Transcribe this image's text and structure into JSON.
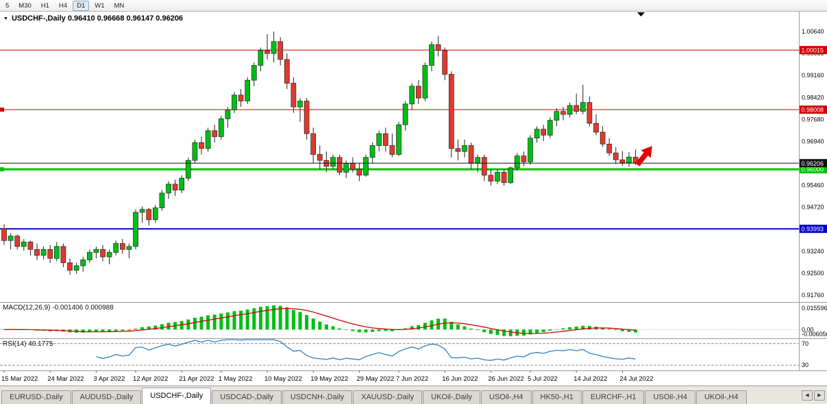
{
  "toolbar": {
    "timeframes": [
      "5",
      "M30",
      "H1",
      "H4",
      "D1",
      "W1",
      "MN"
    ],
    "active": "D1"
  },
  "chart": {
    "title_line": "USDCHF-,Daily 0.96410 0.96668 0.96147 0.96206",
    "collapse_icon": "▼"
  },
  "indicators": {
    "macd": {
      "label": "MACD(12,26,9) -0.001406 0.000988",
      "params": [
        12,
        26,
        9
      ],
      "axis_labels": [
        "0.015596",
        "0.00",
        "-0.006056"
      ]
    },
    "rsi": {
      "label": "RSI(14) 40.1775",
      "period": 14,
      "levels": [
        70,
        30
      ],
      "axis_labels": [
        "70",
        "30"
      ]
    }
  },
  "chart_data": {
    "type": "candlestick",
    "symbol": "USDCHF-",
    "timeframe": "Daily",
    "last_ohlc": {
      "open": 0.9641,
      "high": 0.96668,
      "low": 0.96147,
      "close": 0.96206
    },
    "ylim": [
      0.9153,
      1.0131
    ],
    "y_ticks": [
      "1.00640",
      "0.99900",
      "0.99160",
      "0.98420",
      "0.97680",
      "0.96940",
      "0.96200",
      "0.95460",
      "0.94720",
      "0.93980",
      "0.93240",
      "0.92500",
      "0.91760"
    ],
    "x_labels": [
      {
        "text": "15 Mar 2022",
        "i": 0
      },
      {
        "text": "24 Mar 2022",
        "i": 7
      },
      {
        "text": "3 Apr 2022",
        "i": 14
      },
      {
        "text": "12 Apr 2022",
        "i": 20
      },
      {
        "text": "21 Apr 2022",
        "i": 27
      },
      {
        "text": "1 May 2022",
        "i": 33
      },
      {
        "text": "10 May 2022",
        "i": 40
      },
      {
        "text": "19 May 2022",
        "i": 47
      },
      {
        "text": "29 May 2022",
        "i": 54
      },
      {
        "text": "7 Jun 2022",
        "i": 60
      },
      {
        "text": "16 Jun 2022",
        "i": 67
      },
      {
        "text": "26 Jun 2022",
        "i": 74
      },
      {
        "text": "5 Jul 2022",
        "i": 80
      },
      {
        "text": "14 Jul 2022",
        "i": 87
      },
      {
        "text": "24 Jul 2022",
        "i": 94
      }
    ],
    "hlines": [
      {
        "price": 1.00015,
        "label": "1.00015",
        "color": "#d40000",
        "width": 1,
        "handle": false
      },
      {
        "price": 0.98008,
        "label": "0.98008",
        "color": "#d40000",
        "width": 1,
        "handle": true
      },
      {
        "price": 0.96,
        "label": "0.96000",
        "color": "#00c300",
        "width": 3,
        "handle": true
      },
      {
        "price": 0.93993,
        "label": "0.93993",
        "color": "#0000c8",
        "width": 2,
        "handle": false
      }
    ],
    "current_price": {
      "price": 0.96206,
      "label": "0.96206",
      "color": "#111111"
    },
    "colors": {
      "bull": "#00be16",
      "bear": "#e03a2e",
      "wick": "#222222",
      "signal": "#d40000",
      "histogram": "#00be16",
      "rsi": "#2f7fc1",
      "arrow": "#e80000"
    },
    "candles": [
      [
        0.94,
        0.9415,
        0.9345,
        0.936
      ],
      [
        0.936,
        0.9385,
        0.933,
        0.9375
      ],
      [
        0.9375,
        0.938,
        0.933,
        0.934
      ],
      [
        0.934,
        0.9365,
        0.9325,
        0.9355
      ],
      [
        0.9355,
        0.936,
        0.931,
        0.933
      ],
      [
        0.933,
        0.935,
        0.9295,
        0.931
      ],
      [
        0.931,
        0.934,
        0.9295,
        0.933
      ],
      [
        0.933,
        0.9345,
        0.9285,
        0.93
      ],
      [
        0.93,
        0.9355,
        0.929,
        0.934
      ],
      [
        0.934,
        0.935,
        0.927,
        0.9285
      ],
      [
        0.9285,
        0.93,
        0.9245,
        0.926
      ],
      [
        0.926,
        0.9285,
        0.9248,
        0.9275
      ],
      [
        0.9275,
        0.9305,
        0.9255,
        0.9295
      ],
      [
        0.9295,
        0.933,
        0.9285,
        0.932
      ],
      [
        0.932,
        0.934,
        0.93,
        0.933
      ],
      [
        0.933,
        0.9345,
        0.929,
        0.9305
      ],
      [
        0.9305,
        0.933,
        0.928,
        0.932
      ],
      [
        0.932,
        0.936,
        0.931,
        0.935
      ],
      [
        0.935,
        0.9365,
        0.9315,
        0.933
      ],
      [
        0.933,
        0.935,
        0.93,
        0.934
      ],
      [
        0.934,
        0.9465,
        0.933,
        0.9455
      ],
      [
        0.9455,
        0.9475,
        0.942,
        0.9465
      ],
      [
        0.9465,
        0.947,
        0.941,
        0.943
      ],
      [
        0.943,
        0.948,
        0.942,
        0.947
      ],
      [
        0.947,
        0.953,
        0.946,
        0.952
      ],
      [
        0.952,
        0.956,
        0.95,
        0.955
      ],
      [
        0.955,
        0.9565,
        0.951,
        0.953
      ],
      [
        0.953,
        0.958,
        0.952,
        0.957
      ],
      [
        0.957,
        0.964,
        0.956,
        0.963
      ],
      [
        0.963,
        0.97,
        0.962,
        0.969
      ],
      [
        0.969,
        0.971,
        0.965,
        0.967
      ],
      [
        0.967,
        0.974,
        0.966,
        0.973
      ],
      [
        0.973,
        0.975,
        0.969,
        0.971
      ],
      [
        0.971,
        0.978,
        0.97,
        0.977
      ],
      [
        0.977,
        0.981,
        0.974,
        0.98
      ],
      [
        0.98,
        0.986,
        0.979,
        0.985
      ],
      [
        0.985,
        0.987,
        0.981,
        0.983
      ],
      [
        0.983,
        0.991,
        0.982,
        0.99
      ],
      [
        0.99,
        0.996,
        0.988,
        0.995
      ],
      [
        0.995,
        1.001,
        0.993,
        1.0
      ],
      [
        1.0,
        1.0055,
        0.997,
        0.999
      ],
      [
        0.999,
        1.0064,
        0.996,
        1.003
      ],
      [
        1.003,
        1.0045,
        0.995,
        0.997
      ],
      [
        0.997,
        0.999,
        0.987,
        0.989
      ],
      [
        0.989,
        0.991,
        0.979,
        0.981
      ],
      [
        0.981,
        0.984,
        0.976,
        0.983
      ],
      [
        0.983,
        0.984,
        0.97,
        0.972
      ],
      [
        0.972,
        0.974,
        0.962,
        0.965
      ],
      [
        0.965,
        0.968,
        0.96,
        0.963
      ],
      [
        0.963,
        0.966,
        0.959,
        0.961
      ],
      [
        0.961,
        0.965,
        0.96,
        0.964
      ],
      [
        0.964,
        0.965,
        0.958,
        0.959
      ],
      [
        0.959,
        0.963,
        0.957,
        0.962
      ],
      [
        0.962,
        0.964,
        0.959,
        0.96
      ],
      [
        0.96,
        0.962,
        0.956,
        0.958
      ],
      [
        0.958,
        0.965,
        0.9575,
        0.964
      ],
      [
        0.964,
        0.969,
        0.962,
        0.968
      ],
      [
        0.968,
        0.973,
        0.966,
        0.972
      ],
      [
        0.972,
        0.974,
        0.966,
        0.968
      ],
      [
        0.968,
        0.972,
        0.964,
        0.965
      ],
      [
        0.965,
        0.976,
        0.9645,
        0.975
      ],
      [
        0.975,
        0.983,
        0.973,
        0.982
      ],
      [
        0.982,
        0.989,
        0.98,
        0.988
      ],
      [
        0.988,
        0.99,
        0.982,
        0.984
      ],
      [
        0.984,
        0.996,
        0.983,
        0.995
      ],
      [
        0.995,
        1.003,
        0.993,
        1.002
      ],
      [
        1.002,
        1.0049,
        0.998,
        1.0
      ],
      [
        1.0,
        1.001,
        0.99,
        0.992
      ],
      [
        0.992,
        0.993,
        0.964,
        0.967
      ],
      [
        0.967,
        0.97,
        0.963,
        0.966
      ],
      [
        0.966,
        0.97,
        0.964,
        0.968
      ],
      [
        0.968,
        0.969,
        0.96,
        0.962
      ],
      [
        0.962,
        0.965,
        0.959,
        0.964
      ],
      [
        0.964,
        0.965,
        0.956,
        0.958
      ],
      [
        0.958,
        0.96,
        0.9545,
        0.956
      ],
      [
        0.956,
        0.96,
        0.955,
        0.959
      ],
      [
        0.959,
        0.96,
        0.9545,
        0.9555
      ],
      [
        0.9555,
        0.961,
        0.955,
        0.9605
      ],
      [
        0.9605,
        0.9655,
        0.9595,
        0.9645
      ],
      [
        0.9645,
        0.966,
        0.961,
        0.9625
      ],
      [
        0.9625,
        0.9715,
        0.9615,
        0.9705
      ],
      [
        0.9705,
        0.9745,
        0.969,
        0.9735
      ],
      [
        0.9735,
        0.975,
        0.9695,
        0.9715
      ],
      [
        0.9715,
        0.9775,
        0.9705,
        0.9765
      ],
      [
        0.9765,
        0.9805,
        0.9745,
        0.9795
      ],
      [
        0.9795,
        0.981,
        0.9765,
        0.9785
      ],
      [
        0.9785,
        0.9825,
        0.9775,
        0.9815
      ],
      [
        0.9815,
        0.9855,
        0.9785,
        0.9795
      ],
      [
        0.9795,
        0.9885,
        0.9785,
        0.9825
      ],
      [
        0.9825,
        0.9845,
        0.9745,
        0.9755
      ],
      [
        0.9755,
        0.9785,
        0.9715,
        0.9725
      ],
      [
        0.9725,
        0.9745,
        0.9675,
        0.9685
      ],
      [
        0.9685,
        0.9705,
        0.9645,
        0.9655
      ],
      [
        0.9655,
        0.9675,
        0.9618,
        0.9632
      ],
      [
        0.9632,
        0.9662,
        0.9612,
        0.9622
      ],
      [
        0.9622,
        0.9658,
        0.9608,
        0.9641
      ],
      [
        0.9641,
        0.96668,
        0.96147,
        0.96206
      ]
    ]
  },
  "tabs": {
    "active_index": 2,
    "scroll_left": "◀",
    "scroll_right": "▶",
    "items": [
      "EURUSD-,Daily",
      "AUDUSD-,Daily",
      "USDCHF-,Daily",
      "USDCAD-,Daily",
      "USDCNH-,Daily",
      "XAUUSD-,Daily",
      "UKOil-,Daily",
      "USOil-,H4",
      "HK50-,H1",
      "EURCHF-,H1",
      "USOil-,H4",
      "UKOil-,H4"
    ]
  }
}
